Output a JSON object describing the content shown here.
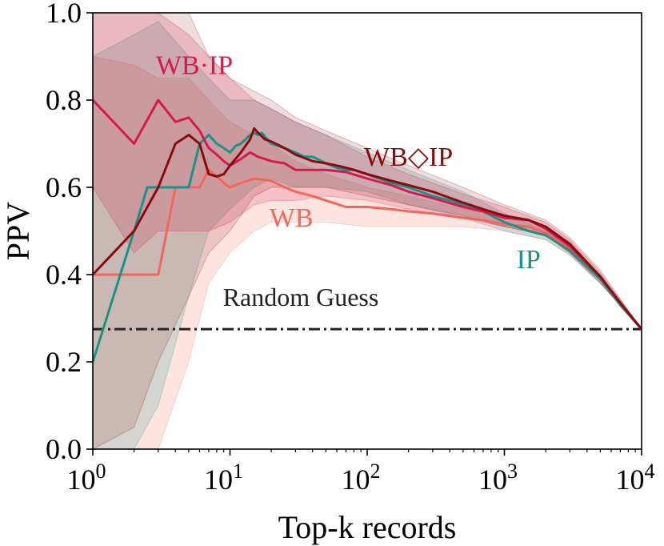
{
  "chart_data": {
    "type": "line",
    "xscale": "log",
    "xlabel": "Top-k records",
    "ylabel": "PPV",
    "xlim": [
      1,
      10000
    ],
    "ylim": [
      0.0,
      1.0
    ],
    "x_ticks": [
      {
        "value": 1,
        "base": "10",
        "exp": "0"
      },
      {
        "value": 10,
        "base": "10",
        "exp": "1"
      },
      {
        "value": 100,
        "base": "10",
        "exp": "2"
      },
      {
        "value": 1000,
        "base": "10",
        "exp": "3"
      },
      {
        "value": 10000,
        "base": "10",
        "exp": "4"
      }
    ],
    "y_ticks": [
      {
        "value": 0.0,
        "label": "0.0"
      },
      {
        "value": 0.2,
        "label": "0.2"
      },
      {
        "value": 0.4,
        "label": "0.4"
      },
      {
        "value": 0.6,
        "label": "0.6"
      },
      {
        "value": 0.8,
        "label": "0.8"
      },
      {
        "value": 1.0,
        "label": "1.0"
      }
    ],
    "baseline": {
      "name": "Random Guess",
      "value": 0.275,
      "color": "#222222"
    },
    "series": [
      {
        "name": "WB",
        "color": "#f2675a",
        "band_alpha": 0.18,
        "label_at": {
          "x": 28,
          "y": 0.51
        },
        "points": [
          [
            1,
            0.4
          ],
          [
            2,
            0.4
          ],
          [
            3,
            0.4
          ],
          [
            4,
            0.6
          ],
          [
            5,
            0.6
          ],
          [
            6,
            0.6
          ],
          [
            7,
            0.64
          ],
          [
            8,
            0.625
          ],
          [
            9,
            0.61
          ],
          [
            10,
            0.6
          ],
          [
            12,
            0.61
          ],
          [
            15,
            0.62
          ],
          [
            20,
            0.615
          ],
          [
            25,
            0.6
          ],
          [
            30,
            0.59
          ],
          [
            40,
            0.58
          ],
          [
            50,
            0.57
          ],
          [
            70,
            0.555
          ],
          [
            100,
            0.555
          ],
          [
            150,
            0.55
          ],
          [
            200,
            0.545
          ],
          [
            300,
            0.54
          ],
          [
            500,
            0.53
          ],
          [
            700,
            0.525
          ],
          [
            1000,
            0.515
          ],
          [
            1500,
            0.51
          ],
          [
            2000,
            0.495
          ],
          [
            3000,
            0.46
          ],
          [
            5000,
            0.39
          ],
          [
            7000,
            0.33
          ],
          [
            10000,
            0.275
          ]
        ],
        "upper": [
          [
            1,
            0.9
          ],
          [
            2,
            0.88
          ],
          [
            3,
            0.85
          ],
          [
            5,
            0.85
          ],
          [
            7,
            0.8
          ],
          [
            10,
            0.75
          ],
          [
            15,
            0.72
          ],
          [
            20,
            0.7
          ],
          [
            30,
            0.66
          ],
          [
            50,
            0.63
          ],
          [
            100,
            0.6
          ],
          [
            200,
            0.58
          ],
          [
            500,
            0.55
          ],
          [
            1000,
            0.535
          ],
          [
            2000,
            0.51
          ],
          [
            3000,
            0.475
          ],
          [
            5000,
            0.4
          ],
          [
            10000,
            0.275
          ]
        ],
        "lower": [
          [
            1,
            0.0
          ],
          [
            2,
            0.0
          ],
          [
            3,
            0.0
          ],
          [
            5,
            0.2
          ],
          [
            7,
            0.38
          ],
          [
            10,
            0.45
          ],
          [
            15,
            0.5
          ],
          [
            20,
            0.52
          ],
          [
            30,
            0.52
          ],
          [
            50,
            0.52
          ],
          [
            100,
            0.51
          ],
          [
            200,
            0.51
          ],
          [
            500,
            0.51
          ],
          [
            1000,
            0.5
          ],
          [
            2000,
            0.48
          ],
          [
            3000,
            0.445
          ],
          [
            5000,
            0.38
          ],
          [
            10000,
            0.275
          ]
        ]
      },
      {
        "name": "IP",
        "color": "#1a9288",
        "band_alpha": 0.18,
        "label_at": {
          "x": 1500,
          "y": 0.415
        },
        "points": [
          [
            1,
            0.2
          ],
          [
            2,
            0.5
          ],
          [
            2.5,
            0.6
          ],
          [
            3,
            0.6
          ],
          [
            4,
            0.6
          ],
          [
            5,
            0.6
          ],
          [
            6,
            0.7
          ],
          [
            7,
            0.72
          ],
          [
            8,
            0.7
          ],
          [
            9,
            0.69
          ],
          [
            10,
            0.68
          ],
          [
            11,
            0.695
          ],
          [
            12,
            0.7
          ],
          [
            13,
            0.71
          ],
          [
            14,
            0.72
          ],
          [
            15,
            0.725
          ],
          [
            16,
            0.72
          ],
          [
            17,
            0.725
          ],
          [
            20,
            0.7
          ],
          [
            25,
            0.69
          ],
          [
            30,
            0.68
          ],
          [
            35,
            0.67
          ],
          [
            40,
            0.67
          ],
          [
            50,
            0.655
          ],
          [
            60,
            0.645
          ],
          [
            70,
            0.64
          ],
          [
            80,
            0.64
          ],
          [
            100,
            0.63
          ],
          [
            150,
            0.61
          ],
          [
            200,
            0.6
          ],
          [
            300,
            0.58
          ],
          [
            400,
            0.57
          ],
          [
            500,
            0.56
          ],
          [
            700,
            0.545
          ],
          [
            1000,
            0.52
          ],
          [
            1500,
            0.5
          ],
          [
            2000,
            0.49
          ],
          [
            3000,
            0.455
          ],
          [
            5000,
            0.39
          ],
          [
            7000,
            0.33
          ],
          [
            10000,
            0.275
          ]
        ],
        "upper": [
          [
            1,
            0.9
          ],
          [
            2,
            0.95
          ],
          [
            3,
            0.98
          ],
          [
            5,
            0.9
          ],
          [
            7,
            0.85
          ],
          [
            10,
            0.8
          ],
          [
            15,
            0.8
          ],
          [
            20,
            0.78
          ],
          [
            30,
            0.75
          ],
          [
            50,
            0.72
          ],
          [
            100,
            0.68
          ],
          [
            200,
            0.64
          ],
          [
            500,
            0.59
          ],
          [
            1000,
            0.54
          ],
          [
            2000,
            0.5
          ],
          [
            3000,
            0.465
          ],
          [
            5000,
            0.4
          ],
          [
            10000,
            0.275
          ]
        ],
        "lower": [
          [
            1,
            0.0
          ],
          [
            2,
            0.0
          ],
          [
            3,
            0.1
          ],
          [
            5,
            0.35
          ],
          [
            7,
            0.5
          ],
          [
            10,
            0.55
          ],
          [
            15,
            0.6
          ],
          [
            20,
            0.62
          ],
          [
            30,
            0.6
          ],
          [
            50,
            0.6
          ],
          [
            100,
            0.59
          ],
          [
            200,
            0.56
          ],
          [
            500,
            0.53
          ],
          [
            1000,
            0.5
          ],
          [
            2000,
            0.48
          ],
          [
            3000,
            0.445
          ],
          [
            5000,
            0.38
          ],
          [
            10000,
            0.275
          ]
        ]
      },
      {
        "name": "WB·IP",
        "color": "#d6194f",
        "band_alpha": 0.18,
        "label_at": {
          "x": 5.5,
          "y": 0.86
        },
        "points": [
          [
            1,
            0.8
          ],
          [
            2,
            0.7
          ],
          [
            3,
            0.8
          ],
          [
            4,
            0.75
          ],
          [
            5,
            0.76
          ],
          [
            6,
            0.73
          ],
          [
            7,
            0.69
          ],
          [
            8,
            0.675
          ],
          [
            9,
            0.66
          ],
          [
            10,
            0.65
          ],
          [
            12,
            0.665
          ],
          [
            14,
            0.68
          ],
          [
            16,
            0.67
          ],
          [
            20,
            0.66
          ],
          [
            25,
            0.655
          ],
          [
            30,
            0.64
          ],
          [
            40,
            0.64
          ],
          [
            50,
            0.64
          ],
          [
            70,
            0.635
          ],
          [
            100,
            0.62
          ],
          [
            150,
            0.605
          ],
          [
            200,
            0.59
          ],
          [
            300,
            0.575
          ],
          [
            500,
            0.555
          ],
          [
            700,
            0.545
          ],
          [
            1000,
            0.53
          ],
          [
            1500,
            0.525
          ],
          [
            2000,
            0.505
          ],
          [
            3000,
            0.465
          ],
          [
            5000,
            0.395
          ],
          [
            7000,
            0.335
          ],
          [
            10000,
            0.275
          ]
        ],
        "upper": [
          [
            1,
            1.0
          ],
          [
            2,
            1.0
          ],
          [
            3,
            1.0
          ],
          [
            5,
            0.95
          ],
          [
            7,
            0.9
          ],
          [
            10,
            0.85
          ],
          [
            15,
            0.8
          ],
          [
            20,
            0.78
          ],
          [
            30,
            0.75
          ],
          [
            50,
            0.72
          ],
          [
            100,
            0.67
          ],
          [
            200,
            0.63
          ],
          [
            500,
            0.585
          ],
          [
            1000,
            0.555
          ],
          [
            2000,
            0.52
          ],
          [
            3000,
            0.48
          ],
          [
            5000,
            0.405
          ],
          [
            10000,
            0.275
          ]
        ],
        "lower": [
          [
            1,
            0.6
          ],
          [
            2,
            0.45
          ],
          [
            3,
            0.5
          ],
          [
            5,
            0.5
          ],
          [
            7,
            0.5
          ],
          [
            10,
            0.52
          ],
          [
            15,
            0.56
          ],
          [
            20,
            0.57
          ],
          [
            30,
            0.57
          ],
          [
            50,
            0.58
          ],
          [
            100,
            0.57
          ],
          [
            200,
            0.55
          ],
          [
            500,
            0.53
          ],
          [
            1000,
            0.51
          ],
          [
            2000,
            0.49
          ],
          [
            3000,
            0.45
          ],
          [
            5000,
            0.385
          ],
          [
            10000,
            0.275
          ]
        ]
      },
      {
        "name": "WB◇IP",
        "color": "#8b0a0a",
        "band_alpha": 0.14,
        "label_at": {
          "x": 200,
          "y": 0.65
        },
        "points": [
          [
            1,
            0.4
          ],
          [
            2,
            0.5
          ],
          [
            3,
            0.6
          ],
          [
            4,
            0.7
          ],
          [
            5,
            0.72
          ],
          [
            6,
            0.7
          ],
          [
            7,
            0.63
          ],
          [
            8,
            0.625
          ],
          [
            9,
            0.63
          ],
          [
            10,
            0.65
          ],
          [
            12,
            0.68
          ],
          [
            14,
            0.71
          ],
          [
            15,
            0.735
          ],
          [
            16,
            0.725
          ],
          [
            18,
            0.71
          ],
          [
            20,
            0.705
          ],
          [
            25,
            0.69
          ],
          [
            30,
            0.675
          ],
          [
            40,
            0.66
          ],
          [
            50,
            0.655
          ],
          [
            60,
            0.65
          ],
          [
            70,
            0.645
          ],
          [
            80,
            0.64
          ],
          [
            100,
            0.63
          ],
          [
            150,
            0.615
          ],
          [
            200,
            0.605
          ],
          [
            300,
            0.59
          ],
          [
            500,
            0.565
          ],
          [
            700,
            0.55
          ],
          [
            1000,
            0.535
          ],
          [
            1500,
            0.525
          ],
          [
            2000,
            0.51
          ],
          [
            3000,
            0.47
          ],
          [
            5000,
            0.395
          ],
          [
            7000,
            0.335
          ],
          [
            10000,
            0.275
          ]
        ],
        "upper": [
          [
            1,
            1.0
          ],
          [
            2,
            1.0
          ],
          [
            3,
            1.0
          ],
          [
            5,
            1.0
          ],
          [
            7,
            0.9
          ],
          [
            10,
            0.85
          ],
          [
            15,
            0.82
          ],
          [
            20,
            0.8
          ],
          [
            30,
            0.76
          ],
          [
            50,
            0.73
          ],
          [
            100,
            0.69
          ],
          [
            200,
            0.65
          ],
          [
            500,
            0.6
          ],
          [
            1000,
            0.56
          ],
          [
            2000,
            0.525
          ],
          [
            3000,
            0.485
          ],
          [
            5000,
            0.41
          ],
          [
            10000,
            0.275
          ]
        ],
        "lower": [
          [
            1,
            0.0
          ],
          [
            2,
            0.05
          ],
          [
            3,
            0.2
          ],
          [
            5,
            0.35
          ],
          [
            7,
            0.45
          ],
          [
            10,
            0.5
          ],
          [
            15,
            0.58
          ],
          [
            20,
            0.6
          ],
          [
            30,
            0.6
          ],
          [
            50,
            0.6
          ],
          [
            100,
            0.58
          ],
          [
            200,
            0.56
          ],
          [
            500,
            0.535
          ],
          [
            1000,
            0.51
          ],
          [
            2000,
            0.49
          ],
          [
            3000,
            0.45
          ],
          [
            5000,
            0.38
          ],
          [
            10000,
            0.275
          ]
        ]
      }
    ]
  }
}
